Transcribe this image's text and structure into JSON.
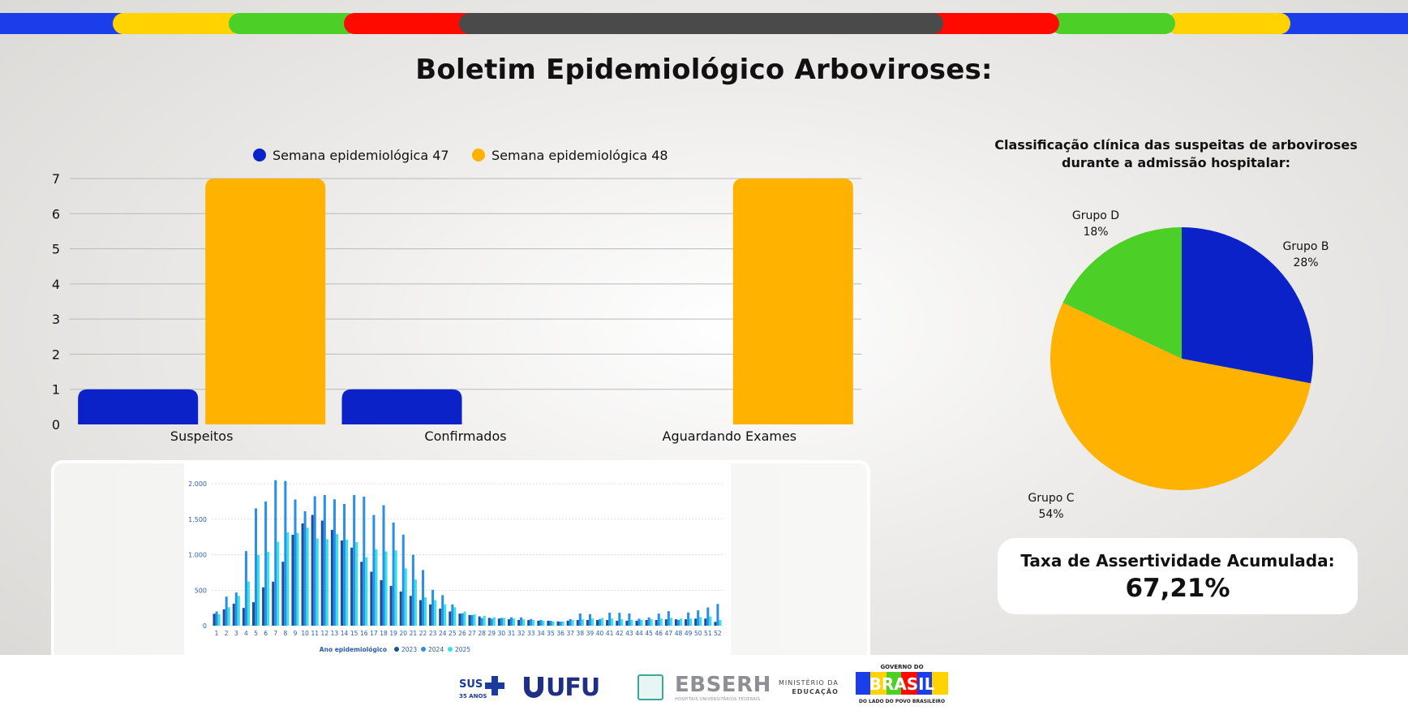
{
  "page": {
    "title": "Boletim Epidemiológico Arboviroses:"
  },
  "colors": {
    "blue": "#0a22c8",
    "yellow": "#ffb300",
    "green": "#4ccf26",
    "red": "#ff0a00",
    "dark": "#4a4a4a",
    "stripe_yellow": "#ffd200",
    "stripe_blue": "#1a3fea"
  },
  "accuracy": {
    "label": "Taxa de Assertividade Acumulada:",
    "value": "67,21%"
  },
  "footer": {
    "sus_label": "SUS",
    "sus_years": "35 ANOS",
    "ufu_label": "UFU",
    "ebserh_label": "EBSERH",
    "ebserh_sub": "HOSPITAIS UNIVERSITÁRIOS FEDERAIS",
    "mec_line1": "MINISTÉRIO DA",
    "mec_line2": "EDUCAÇÃO",
    "gov_top": "GOVERNO DO",
    "gov_word": "BRASIL",
    "gov_sub": "DO LADO DO POVO BRASILEIRO"
  },
  "chart_data": [
    {
      "type": "bar",
      "categories": [
        "Suspeitos",
        "Confirmados",
        "Aguardando Exames"
      ],
      "series": [
        {
          "name": "Semana epidemiológica 47",
          "values": [
            1,
            1,
            0
          ],
          "color": "#0a22c8"
        },
        {
          "name": "Semana epidemiológica 48",
          "values": [
            7,
            0,
            7
          ],
          "color": "#ffb300"
        }
      ],
      "ylim": [
        0,
        7
      ],
      "yticks": [
        0,
        1,
        2,
        3,
        4,
        5,
        6,
        7
      ],
      "grid": true,
      "legend": "top-center"
    },
    {
      "type": "pie",
      "title": "Classificação clínica das suspeitas de arboviroses durante a admissão hospitalar:",
      "slices": [
        {
          "label": "Grupo B",
          "value": 28,
          "display": "28%",
          "color": "#0a22c8"
        },
        {
          "label": "Grupo C",
          "value": 54,
          "display": "54%",
          "color": "#ffb300"
        },
        {
          "label": "Grupo D",
          "value": 18,
          "display": "18%",
          "color": "#4ccf26"
        }
      ]
    },
    {
      "type": "bar",
      "xlabel": "Ano epidemiológico",
      "categories": [
        1,
        2,
        3,
        4,
        5,
        6,
        7,
        8,
        9,
        10,
        11,
        12,
        13,
        14,
        15,
        16,
        17,
        18,
        19,
        20,
        21,
        22,
        23,
        24,
        25,
        26,
        27,
        28,
        29,
        30,
        31,
        32,
        33,
        34,
        35,
        36,
        37,
        38,
        39,
        40,
        41,
        42,
        43,
        44,
        45,
        46,
        47,
        48,
        49,
        50,
        51,
        52
      ],
      "ylim": [
        0,
        2000
      ],
      "yticks": [
        0,
        500,
        1000,
        1500,
        2000
      ],
      "ytick_labels": [
        "0",
        "500",
        "1.000",
        "1.500",
        "2.000"
      ],
      "series": [
        {
          "name": "2023",
          "color": "#1a4f9c",
          "values": [
            168,
            230,
            310,
            250,
            330,
            540,
            620,
            900,
            1280,
            1440,
            1560,
            1480,
            1350,
            1200,
            1100,
            900,
            760,
            640,
            560,
            480,
            420,
            360,
            300,
            240,
            200,
            170,
            150,
            130,
            110,
            100,
            90,
            80,
            80,
            70,
            70,
            60,
            70,
            80,
            80,
            80,
            80,
            70,
            70,
            70,
            80,
            80,
            90,
            90,
            90,
            100,
            100,
            54
          ]
        },
        {
          "name": "2024",
          "color": "#2a8fe8",
          "values": [
            200,
            410,
            467,
            1050,
            1652,
            1749,
            2049,
            2038,
            1778,
            1612,
            1823,
            1840,
            1780,
            1714,
            1839,
            1817,
            1559,
            1697,
            1453,
            1282,
            999,
            784,
            506,
            430,
            300,
            174,
            149,
            107,
            99,
            109,
            118,
            117,
            94,
            81,
            68,
            57,
            93,
            171,
            163,
            92,
            182,
            181,
            172,
            99,
            117,
            170,
            204,
            81,
            186,
            216,
            257,
            307
          ]
        },
        {
          "name": "2025",
          "color": "#35e2e6",
          "values": [
            160,
            260,
            420,
            623,
            996,
            1039,
            1181,
            1315,
            1306,
            1380,
            1229,
            1218,
            1290,
            1210,
            1176,
            964,
            1074,
            1046,
            1060,
            808,
            649,
            400,
            360,
            300,
            260,
            200,
            160,
            140,
            120,
            110,
            100,
            90,
            80,
            70,
            60,
            60,
            80,
            90,
            100,
            110,
            100,
            90,
            80,
            80,
            90,
            100,
            110,
            100,
            100,
            120,
            130,
            80
          ]
        }
      ],
      "legend": "bottom"
    }
  ]
}
